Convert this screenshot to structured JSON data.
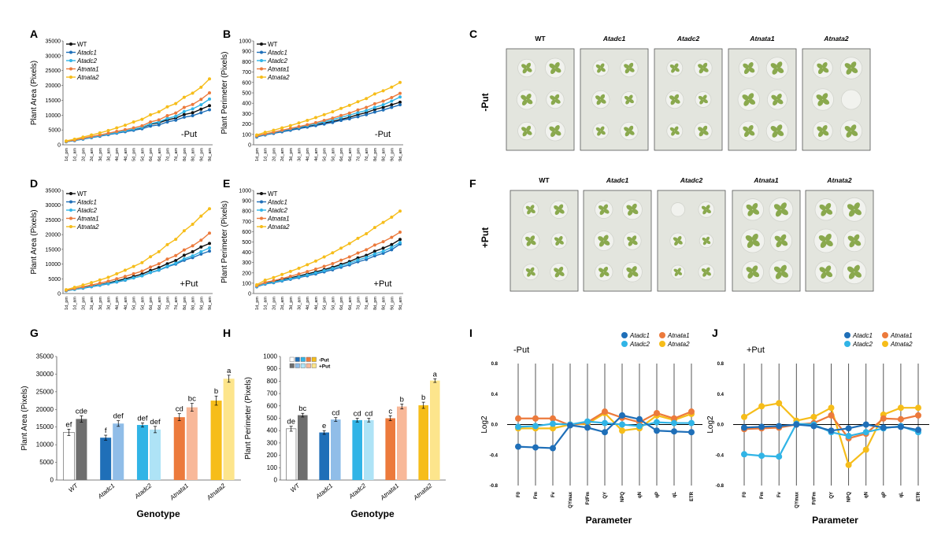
{
  "genotypes": [
    "WT",
    "Atadc1",
    "Atadc2",
    "Atnata1",
    "Atnata2"
  ],
  "colors": {
    "WT": "#111111",
    "Atadc1": "#1f6fb8",
    "Atadc2": "#31b4e6",
    "Atnata1": "#ec7a3c",
    "Atnata2": "#f6bd1a"
  },
  "conditions": {
    "minus": "-Put",
    "plus": "+Put"
  },
  "panel_labels": {
    "A": "A",
    "B": "B",
    "C": "C",
    "D": "D",
    "E": "E",
    "F": "F",
    "G": "G",
    "H": "H",
    "I": "I",
    "J": "J"
  },
  "chart_data": [
    {
      "id": "A",
      "type": "line",
      "title": "",
      "condition": "-Put",
      "ylabel": "Plant Area (Pixels)",
      "ylim": [
        0,
        35000
      ],
      "yticks": [
        0,
        5000,
        10000,
        15000,
        20000,
        25000,
        30000,
        35000
      ],
      "categories": [
        "1d_pm",
        "1d_am",
        "2d_pm",
        "2d_am",
        "3d_pm",
        "3d_am",
        "4d_pm",
        "4d_am",
        "5d_pm",
        "5d_am",
        "6d_pm",
        "6d_am",
        "7d_pm",
        "7d_am",
        "8d_pm",
        "8d_am",
        "9d_pm",
        "9d_am"
      ],
      "series": [
        {
          "name": "WT",
          "values": [
            1100,
            1500,
            2100,
            2600,
            3100,
            3600,
            4100,
            4700,
            5200,
            5800,
            6900,
            7400,
            8400,
            9000,
            10200,
            10800,
            12000,
            13200
          ]
        },
        {
          "name": "Atadc1",
          "values": [
            1000,
            1400,
            1900,
            2400,
            2900,
            3400,
            3900,
            4400,
            4900,
            5400,
            6300,
            6700,
            7700,
            8300,
            9300,
            9800,
            10800,
            11800
          ]
        },
        {
          "name": "Atadc2",
          "values": [
            1050,
            1500,
            2000,
            2500,
            3100,
            3600,
            4100,
            4700,
            5300,
            5900,
            7100,
            7700,
            8900,
            9600,
            11200,
            12100,
            13500,
            15400
          ]
        },
        {
          "name": "Atnata1",
          "values": [
            1150,
            1600,
            2200,
            2800,
            3300,
            3900,
            4500,
            5100,
            5700,
            6400,
            7700,
            8400,
            9800,
            10700,
            12600,
            13600,
            15300,
            17500
          ]
        },
        {
          "name": "Atnata2",
          "values": [
            1300,
            1900,
            2600,
            3300,
            4000,
            4800,
            5700,
            6600,
            7700,
            8600,
            10100,
            11100,
            12800,
            13900,
            16000,
            17400,
            19400,
            22200
          ]
        }
      ]
    },
    {
      "id": "B",
      "type": "line",
      "title": "",
      "condition": "-Put",
      "ylabel": "Plant Perimeter (Pixels)",
      "ylim": [
        0,
        1000
      ],
      "yticks": [
        0,
        100,
        200,
        300,
        400,
        500,
        600,
        700,
        800,
        900,
        1000
      ],
      "categories": [
        "1d_pm",
        "1d_am",
        "2d_pm",
        "2d_am",
        "3d_pm",
        "3d_am",
        "4d_pm",
        "4d_am",
        "5d_pm",
        "5d_am",
        "6d_pm",
        "6d_am",
        "7d_pm",
        "7d_am",
        "8d_pm",
        "8d_am",
        "9d_pm",
        "9d_am"
      ],
      "series": [
        {
          "name": "WT",
          "values": [
            80,
            100,
            115,
            130,
            145,
            160,
            175,
            190,
            210,
            225,
            245,
            265,
            290,
            310,
            340,
            360,
            385,
            410
          ]
        },
        {
          "name": "Atadc1",
          "values": [
            75,
            95,
            110,
            125,
            140,
            155,
            170,
            185,
            200,
            215,
            235,
            250,
            270,
            290,
            315,
            335,
            360,
            385
          ]
        },
        {
          "name": "Atadc2",
          "values": [
            80,
            100,
            118,
            135,
            152,
            168,
            185,
            203,
            222,
            242,
            265,
            285,
            310,
            330,
            360,
            385,
            420,
            460
          ]
        },
        {
          "name": "Atnata1",
          "values": [
            85,
            105,
            122,
            140,
            158,
            175,
            193,
            213,
            235,
            257,
            282,
            305,
            335,
            360,
            395,
            420,
            455,
            495
          ]
        },
        {
          "name": "Atnata2",
          "values": [
            95,
            120,
            140,
            163,
            185,
            210,
            235,
            262,
            290,
            318,
            350,
            380,
            415,
            445,
            490,
            520,
            555,
            600
          ]
        }
      ]
    },
    {
      "id": "D",
      "type": "line",
      "title": "",
      "condition": "+Put",
      "ylabel": "Plant Area (Pixels)",
      "ylim": [
        0,
        35000
      ],
      "yticks": [
        0,
        5000,
        10000,
        15000,
        20000,
        25000,
        30000,
        35000
      ],
      "categories": [
        "1d_pm",
        "1d_am",
        "2d_pm",
        "2d_am",
        "3d_pm",
        "3d_am",
        "4d_pm",
        "4d_am",
        "5d_pm",
        "5d_am",
        "6d_pm",
        "6d_am",
        "7d_pm",
        "7d_am",
        "8d_pm",
        "8d_am",
        "9d_pm",
        "9d_am"
      ],
      "series": [
        {
          "name": "WT",
          "values": [
            1000,
            1500,
            2000,
            2500,
            3000,
            3600,
            4300,
            5000,
            5800,
            6600,
            7800,
            8800,
            10100,
            11200,
            13000,
            14200,
            15800,
            17000
          ]
        },
        {
          "name": "Atadc1",
          "values": [
            900,
            1400,
            1800,
            2300,
            2800,
            3300,
            3900,
            4500,
            5300,
            6000,
            7100,
            7900,
            9100,
            10000,
            11300,
            12200,
            13400,
            14400
          ]
        },
        {
          "name": "Atadc2",
          "values": [
            950,
            1400,
            1900,
            2400,
            2900,
            3400,
            4000,
            4600,
            5300,
            6000,
            7200,
            8000,
            9300,
            10300,
            11800,
            12800,
            14200,
            15500
          ]
        },
        {
          "name": "Atnata1",
          "values": [
            1100,
            1700,
            2300,
            2900,
            3500,
            4200,
            5000,
            5800,
            6700,
            7600,
            9000,
            10100,
            11700,
            12900,
            14800,
            16200,
            18100,
            20500
          ]
        },
        {
          "name": "Atnata2",
          "values": [
            1300,
            2100,
            2900,
            3700,
            4600,
            5500,
            6700,
            7900,
            9200,
            10500,
            12500,
            14200,
            16600,
            18400,
            21300,
            23500,
            26300,
            28800
          ]
        }
      ]
    },
    {
      "id": "E",
      "type": "line",
      "title": "",
      "condition": "+Put",
      "ylabel": "Plant Perimeter (Pixels)",
      "ylim": [
        0,
        1000
      ],
      "yticks": [
        0,
        100,
        200,
        300,
        400,
        500,
        600,
        700,
        800,
        900,
        1000
      ],
      "categories": [
        "1d_pm",
        "1d_am",
        "2d_pm",
        "2d_am",
        "3d_pm",
        "3d_am",
        "4d_pm",
        "4d_am",
        "5d_pm",
        "5d_am",
        "6d_pm",
        "6d_am",
        "7d_pm",
        "7d_am",
        "8d_pm",
        "8d_am",
        "9d_pm",
        "9d_am"
      ],
      "series": [
        {
          "name": "WT",
          "values": [
            70,
            100,
            115,
            135,
            152,
            170,
            190,
            210,
            232,
            255,
            283,
            310,
            345,
            370,
            410,
            440,
            475,
            525
          ]
        },
        {
          "name": "Atadc1",
          "values": [
            65,
            92,
            105,
            122,
            138,
            155,
            172,
            190,
            210,
            230,
            255,
            278,
            308,
            330,
            365,
            390,
            425,
            480
          ]
        },
        {
          "name": "Atadc2",
          "values": [
            68,
            96,
            110,
            128,
            145,
            162,
            180,
            200,
            222,
            243,
            270,
            294,
            325,
            350,
            385,
            410,
            448,
            495
          ]
        },
        {
          "name": "Atnata1",
          "values": [
            75,
            108,
            125,
            146,
            167,
            190,
            213,
            237,
            263,
            290,
            323,
            355,
            393,
            425,
            470,
            503,
            545,
            595
          ]
        },
        {
          "name": "Atnata2",
          "values": [
            85,
            130,
            155,
            185,
            215,
            245,
            280,
            315,
            355,
            395,
            440,
            485,
            535,
            580,
            640,
            690,
            740,
            800
          ]
        }
      ]
    },
    {
      "id": "G",
      "type": "bar",
      "xlabel": "Genotype",
      "ylabel": "Plant Area (Pixels)",
      "ylim": [
        0,
        35000
      ],
      "yticks": [
        0,
        5000,
        10000,
        15000,
        20000,
        25000,
        30000,
        35000
      ],
      "categories": [
        "WT",
        "Atadc1",
        "Atadc2",
        "Atnata1",
        "Atnata2"
      ],
      "series": [
        {
          "name": "-Put",
          "values": [
            13500,
            12000,
            15600,
            17800,
            22500
          ],
          "errors": [
            900,
            700,
            600,
            1000,
            1300
          ],
          "letters": [
            "ef",
            "f",
            "def",
            "cd",
            "b"
          ]
        },
        {
          "name": "+Put",
          "values": [
            17300,
            16000,
            14300,
            20600,
            28700
          ],
          "errors": [
            900,
            800,
            900,
            1100,
            1000
          ],
          "letters": [
            "cde",
            "def",
            "def",
            "bc",
            "a"
          ]
        }
      ]
    },
    {
      "id": "H",
      "type": "bar",
      "xlabel": "Genotype",
      "ylabel": "Plant Perimeter (Pixels)",
      "ylim": [
        0,
        1000
      ],
      "yticks": [
        0,
        100,
        200,
        300,
        400,
        500,
        600,
        700,
        800,
        900,
        1000
      ],
      "legend": [
        "-Put",
        "+Put"
      ],
      "categories": [
        "WT",
        "Atadc1",
        "Atadc2",
        "Atnata1",
        "Atnata2"
      ],
      "series": [
        {
          "name": "-Put",
          "values": [
            415,
            385,
            485,
            500,
            605
          ],
          "errors": [
            20,
            15,
            15,
            20,
            25
          ],
          "letters": [
            "de",
            "e",
            "cd",
            "c",
            "b"
          ]
        },
        {
          "name": "+Put",
          "values": [
            525,
            490,
            485,
            595,
            805
          ],
          "errors": [
            15,
            15,
            15,
            20,
            15
          ],
          "letters": [
            "bc",
            "cd",
            "cd",
            "b",
            "a"
          ]
        }
      ]
    },
    {
      "id": "I",
      "type": "line",
      "title": "-Put",
      "xlabel": "Parameter",
      "ylabel": "Log2",
      "ylim": [
        -0.8,
        0.8
      ],
      "yticks": [
        -0.8,
        -0.4,
        0.0,
        0.4,
        0.8
      ],
      "categories": [
        "F0",
        "Fm",
        "Fv",
        "QYmax",
        "Ft/Fm",
        "QY",
        "NPQ",
        "qN",
        "qP",
        "qL",
        "ETR"
      ],
      "series": [
        {
          "name": "Atadc1",
          "values": [
            -0.29,
            -0.3,
            -0.31,
            -0.01,
            -0.04,
            -0.1,
            0.12,
            0.07,
            -0.08,
            -0.09,
            -0.1
          ]
        },
        {
          "name": "Atadc2",
          "values": [
            -0.03,
            -0.02,
            0.01,
            0.0,
            0.04,
            0.02,
            0.0,
            -0.02,
            0.03,
            0.02,
            0.02
          ]
        },
        {
          "name": "Atnata1",
          "values": [
            0.08,
            0.08,
            0.08,
            -0.01,
            0.03,
            0.17,
            0.09,
            0.03,
            0.15,
            0.08,
            0.17
          ]
        },
        {
          "name": "Atnata2",
          "values": [
            -0.05,
            -0.05,
            -0.05,
            0.0,
            0.01,
            0.15,
            -0.08,
            -0.05,
            0.12,
            0.06,
            0.14
          ]
        }
      ]
    },
    {
      "id": "J",
      "type": "line",
      "title": "+Put",
      "xlabel": "Parameter",
      "ylabel": "Log2",
      "ylim": [
        -0.8,
        0.8
      ],
      "yticks": [
        -0.8,
        -0.4,
        0.0,
        0.4,
        0.8
      ],
      "categories": [
        "F0",
        "Fm",
        "Fv",
        "QYmax",
        "Ft/Fm",
        "QY",
        "NPQ",
        "qN",
        "qP",
        "qL",
        "ETR"
      ],
      "series": [
        {
          "name": "Atadc1",
          "values": [
            -0.04,
            -0.03,
            -0.02,
            0.0,
            -0.02,
            -0.08,
            -0.05,
            0.0,
            -0.04,
            -0.03,
            -0.07
          ]
        },
        {
          "name": "Atadc2",
          "values": [
            -0.39,
            -0.41,
            -0.42,
            0.01,
            0.0,
            -0.1,
            -0.15,
            -0.1,
            -0.05,
            -0.02,
            -0.1
          ]
        },
        {
          "name": "Atnata1",
          "values": [
            -0.06,
            -0.05,
            -0.04,
            0.0,
            0.02,
            0.12,
            -0.18,
            -0.12,
            0.08,
            0.07,
            0.12
          ]
        },
        {
          "name": "Atnata2",
          "values": [
            0.1,
            0.24,
            0.28,
            0.05,
            0.1,
            0.22,
            -0.53,
            -0.33,
            0.13,
            0.22,
            0.22
          ]
        }
      ]
    }
  ],
  "photos": {
    "genotype_labels": [
      "WT",
      "Atadc1",
      "Atadc2",
      "Atnata1",
      "Atnata2"
    ]
  }
}
